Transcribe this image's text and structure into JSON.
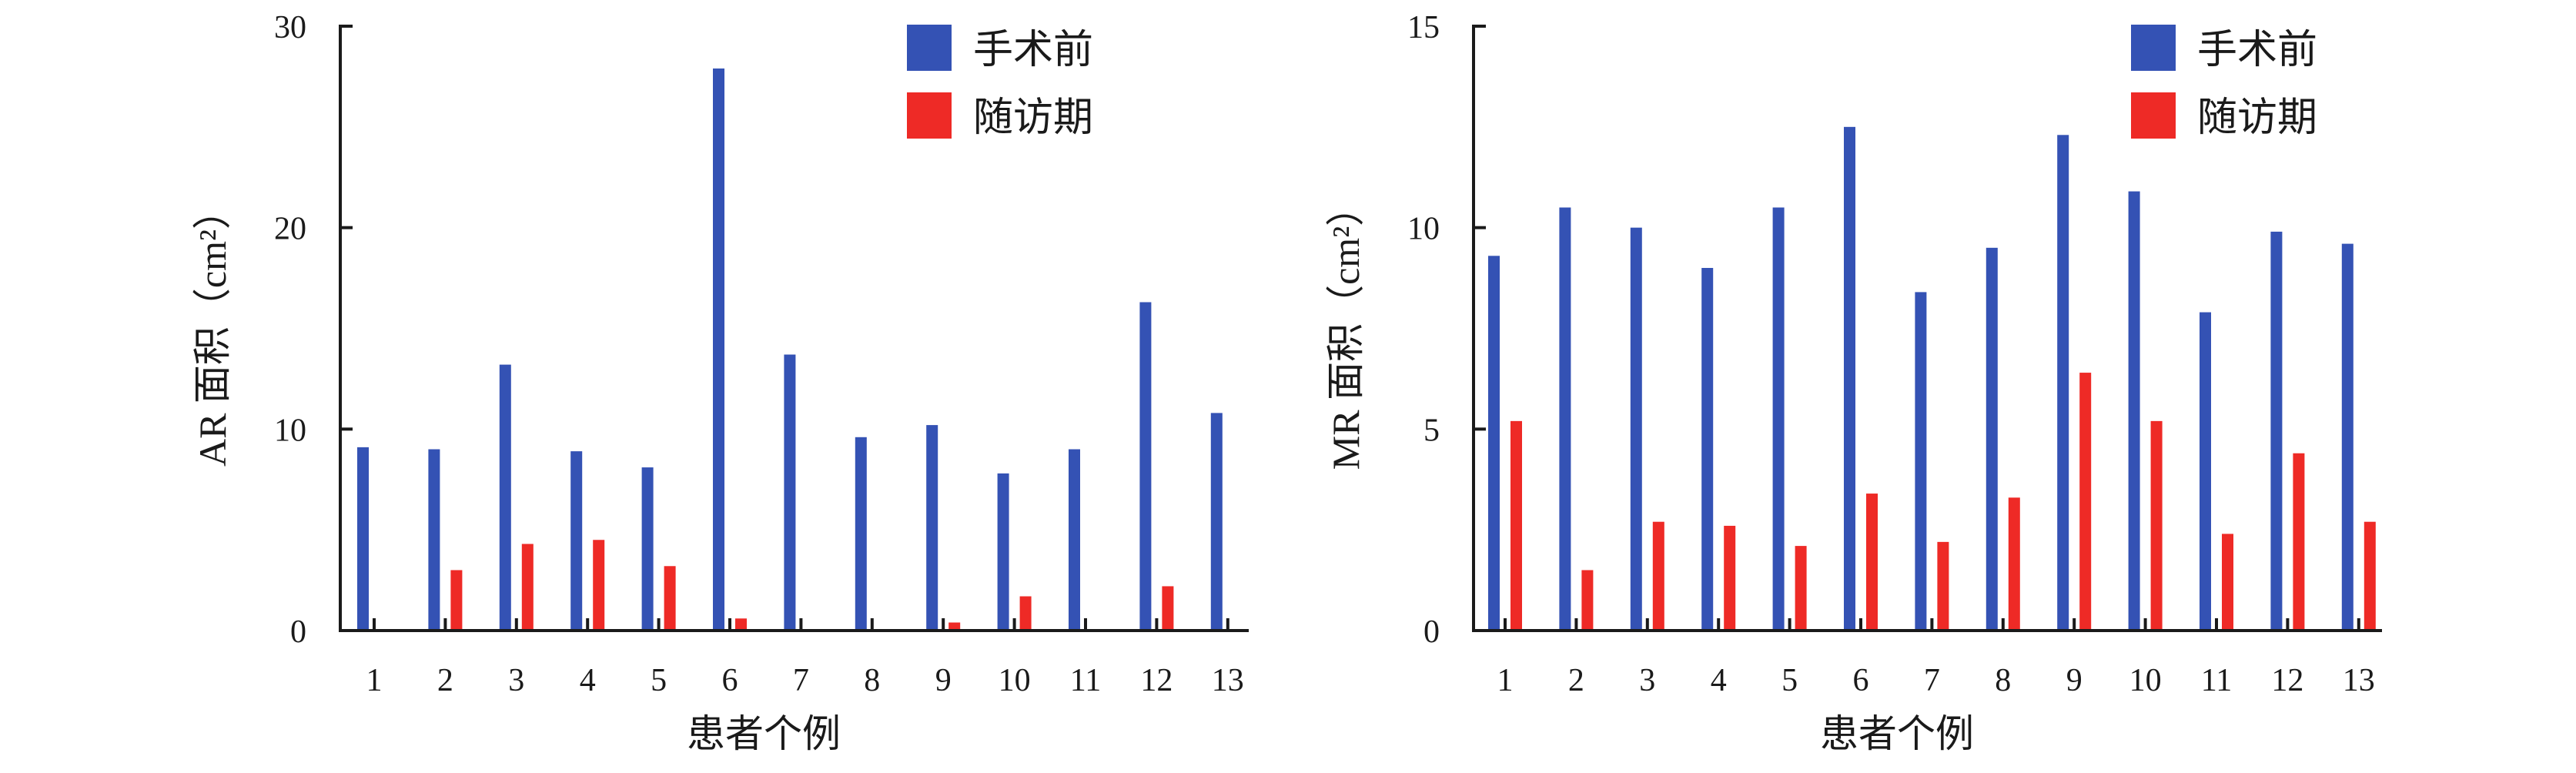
{
  "colors": {
    "before": "#3452b4",
    "after": "#ee2a26",
    "axis": "#1a1a1a"
  },
  "chart_data": [
    {
      "type": "bar",
      "xlabel": "患者个例",
      "ylabel": "AR 面积（cm²）",
      "ylim": [
        0,
        30
      ],
      "yticks": [
        "0",
        "10",
        "20",
        "30"
      ],
      "legend_position": "top-right",
      "categories": [
        "1",
        "2",
        "3",
        "4",
        "5",
        "6",
        "7",
        "8",
        "9",
        "10",
        "11",
        "12",
        "13"
      ],
      "series": [
        {
          "name": "手术前",
          "values": [
            9.1,
            9.0,
            13.2,
            8.9,
            8.1,
            27.9,
            13.7,
            9.6,
            10.2,
            7.8,
            9.0,
            16.3,
            10.8
          ]
        },
        {
          "name": "随访期",
          "values": [
            0,
            3.0,
            4.3,
            4.5,
            3.2,
            0.6,
            0,
            0,
            0.4,
            1.7,
            0,
            2.2,
            0
          ]
        }
      ]
    },
    {
      "type": "bar",
      "xlabel": "患者个例",
      "ylabel": "MR 面积（cm²）",
      "ylim": [
        0,
        15
      ],
      "yticks": [
        "0",
        "5",
        "10",
        "15"
      ],
      "legend_position": "top-right",
      "categories": [
        "1",
        "2",
        "3",
        "4",
        "5",
        "6",
        "7",
        "8",
        "9",
        "10",
        "11",
        "12",
        "13"
      ],
      "series": [
        {
          "name": "手术前",
          "values": [
            9.3,
            10.5,
            10.0,
            9.0,
            10.5,
            12.5,
            8.4,
            9.5,
            12.3,
            10.9,
            7.9,
            9.9,
            9.6
          ]
        },
        {
          "name": "随访期",
          "values": [
            5.2,
            1.5,
            2.7,
            2.6,
            2.1,
            3.4,
            2.2,
            3.3,
            6.4,
            5.2,
            2.4,
            4.4,
            2.7
          ]
        }
      ]
    }
  ]
}
